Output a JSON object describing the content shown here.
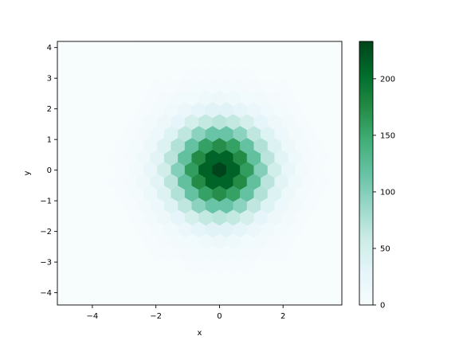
{
  "chart_data": {
    "type": "heatmap",
    "subtype": "hexbin",
    "title": "",
    "xlabel": "x",
    "ylabel": "y",
    "xlim": [
      -5.1,
      3.85
    ],
    "ylim": [
      -4.4,
      4.2
    ],
    "x_ticks": [
      -4,
      -2,
      0,
      2
    ],
    "x_tick_labels": [
      "−4",
      "−2",
      "0",
      "2"
    ],
    "y_ticks": [
      -4,
      -3,
      -2,
      -1,
      0,
      1,
      2,
      3,
      4
    ],
    "y_tick_labels": [
      "−4",
      "−3",
      "−2",
      "−1",
      "0",
      "1",
      "2",
      "3",
      "4"
    ],
    "colormap": "BuGn",
    "colorbar": {
      "range": [
        0,
        233
      ],
      "ticks": [
        0,
        50,
        100,
        150,
        200
      ],
      "tick_labels": [
        "0",
        "50",
        "100",
        "150",
        "200"
      ]
    },
    "distribution": {
      "shape": "2D standard normal (mean 0, sd 1)",
      "peak_count": 233,
      "center": [
        0,
        0
      ]
    },
    "grid": false,
    "colors": {
      "low": "#f7fcfd",
      "mid": "#66c2a4",
      "high": "#00441b"
    }
  }
}
